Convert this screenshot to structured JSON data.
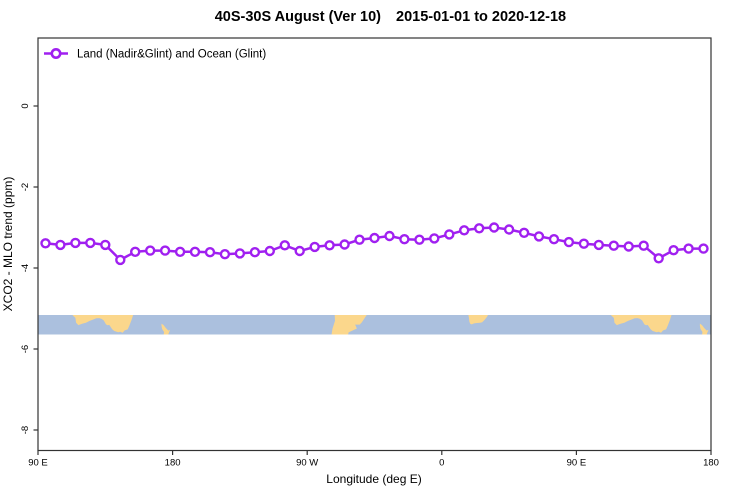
{
  "title": {
    "part1": "40S-30S August (Ver 10)",
    "part2": "2015-01-01 to 2020-12-18",
    "full": "40S-30S August (Ver 10)   2015-01-01 to 2020-12-18"
  },
  "legend": {
    "label": "Land (Nadir&Glint) and Ocean (Glint)"
  },
  "axes": {
    "x": {
      "label": "Longitude (deg E)",
      "ticks": [
        {
          "value": 90,
          "label": "90 E"
        },
        {
          "value": 180,
          "label": "180"
        },
        {
          "value": 270,
          "label": "90 W"
        },
        {
          "value": 360,
          "label": "0"
        },
        {
          "value": 450,
          "label": "90 E"
        },
        {
          "value": 540,
          "label": "180"
        }
      ]
    },
    "y": {
      "label": "XCO2 - MLO trend (ppm)",
      "ticks": [
        {
          "value": 0,
          "label": "0"
        },
        {
          "value": -2,
          "label": "-2"
        },
        {
          "value": -4,
          "label": "-4"
        },
        {
          "value": -6,
          "label": "-6"
        },
        {
          "value": -8,
          "label": "-8"
        }
      ]
    }
  },
  "colors": {
    "line": "#A020F0",
    "marker_fill": "#ffffff",
    "ocean": "#ABC0DE",
    "land": "#FBD78C",
    "axis": "#333333",
    "text": "#000000"
  },
  "chart_data": {
    "type": "line",
    "title": "40S-30S August (Ver 10)   2015-01-01 to 2020-12-18",
    "xlabel": "Longitude (deg E)",
    "ylabel": "XCO2 - MLO trend (ppm)",
    "x_axis_range": [
      90,
      540
    ],
    "ylim": [
      -8.5,
      1.7
    ],
    "grid": false,
    "legend_position": "top-left",
    "x": [
      95,
      105,
      115,
      125,
      135,
      145,
      155,
      165,
      175,
      185,
      195,
      205,
      215,
      225,
      235,
      245,
      255,
      265,
      275,
      285,
      295,
      305,
      315,
      325,
      335,
      345,
      355,
      365,
      375,
      385,
      395,
      405,
      415,
      425,
      435,
      445,
      455,
      465,
      475,
      485,
      495,
      505,
      515,
      525,
      535
    ],
    "series": [
      {
        "name": "Land (Nadir&Glint) and Ocean (Glint)",
        "marker": "open-circle",
        "values": [
          -3.39,
          -3.43,
          -3.38,
          -3.38,
          -3.43,
          -3.8,
          -3.6,
          -3.57,
          -3.57,
          -3.6,
          -3.6,
          -3.61,
          -3.66,
          -3.64,
          -3.61,
          -3.58,
          -3.44,
          -3.58,
          -3.48,
          -3.44,
          -3.42,
          -3.3,
          -3.26,
          -3.21,
          -3.29,
          -3.3,
          -3.27,
          -3.17,
          -3.07,
          -3.02,
          -3.0,
          -3.05,
          -3.13,
          -3.22,
          -3.29,
          -3.36,
          -3.4,
          -3.43,
          -3.45,
          -3.47,
          -3.45,
          -3.76,
          -3.56,
          -3.52,
          -3.52
        ]
      }
    ],
    "map_band": {
      "description": "latitude strip 30S-40S drawn across plot near y=-5.2 to -5.6",
      "lat_range": [
        30,
        40
      ],
      "regions": [
        {
          "name": "Australia",
          "offsets": [
            0,
            360
          ],
          "polygon": [
            [
              113,
              30
            ],
            [
              115,
              31.5
            ],
            [
              115.5,
              34
            ],
            [
              117,
              35.2
            ],
            [
              119.5,
              34.5
            ],
            [
              122,
              34
            ],
            [
              124.5,
              33
            ],
            [
              127,
              32.3
            ],
            [
              129,
              31.7
            ],
            [
              131,
              31.6
            ],
            [
              132.5,
              32
            ],
            [
              134,
              32.8
            ],
            [
              135.5,
              34.8
            ],
            [
              136.6,
              35.3
            ],
            [
              137.6,
              35.1
            ],
            [
              138.2,
              35.7
            ],
            [
              139.6,
              37.3
            ],
            [
              141,
              38.2
            ],
            [
              143.6,
              38.8
            ],
            [
              145,
              38.6
            ],
            [
              146.6,
              39.1
            ],
            [
              148,
              37.9
            ],
            [
              150,
              37.4
            ],
            [
              151.2,
              35.3
            ],
            [
              152.6,
              32.4
            ],
            [
              153.6,
              30
            ]
          ]
        },
        {
          "name": "New Zealand",
          "offsets": [
            0,
            360
          ],
          "polygon": [
            [
              172.6,
              34.4
            ],
            [
              174,
              35.2
            ],
            [
              175.5,
              36.7
            ],
            [
              177.2,
              38
            ],
            [
              178.3,
              37.6
            ],
            [
              177.4,
              39.4
            ],
            [
              176.9,
              40.5
            ],
            [
              173.9,
              40.5
            ],
            [
              174.3,
              38.7
            ],
            [
              173,
              37.2
            ],
            [
              172.6,
              35.5
            ]
          ]
        },
        {
          "name": "South America",
          "offsets": [
            0
          ],
          "polygon": [
            [
              288.4,
              30
            ],
            [
              309.8,
              30
            ],
            [
              308.4,
              31.6
            ],
            [
              306.6,
              33.7
            ],
            [
              305.1,
              34.9
            ],
            [
              302,
              34.9
            ],
            [
              303.2,
              36.9
            ],
            [
              297.7,
              38.9
            ],
            [
              297.2,
              40.5
            ],
            [
              286.2,
              40.5
            ],
            [
              286.9,
              37
            ],
            [
              288.6,
              33
            ]
          ]
        },
        {
          "name": "South Africa",
          "offsets": [
            0
          ],
          "polygon": [
            [
              377.8,
              30
            ],
            [
              378.2,
              31.7
            ],
            [
              378.4,
              33.2
            ],
            [
              378.9,
              34.4
            ],
            [
              380,
              34.8
            ],
            [
              381.6,
              34.3
            ],
            [
              383.4,
              34.1
            ],
            [
              385.6,
              34
            ],
            [
              387,
              33.7
            ],
            [
              388.6,
              32.5
            ],
            [
              390,
              31.2
            ],
            [
              390.9,
              30
            ]
          ]
        }
      ]
    }
  }
}
